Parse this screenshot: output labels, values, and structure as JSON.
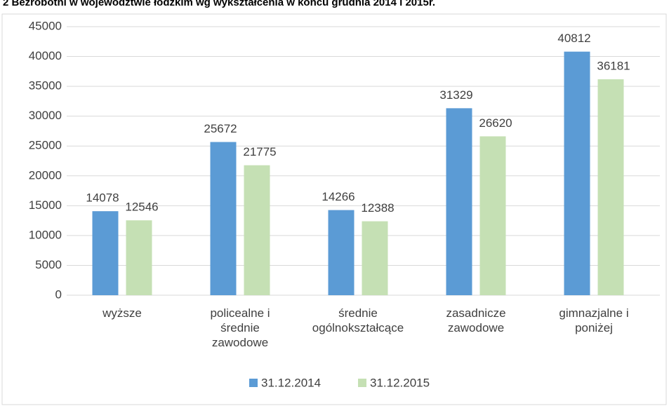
{
  "chart_data": {
    "type": "bar",
    "title": "2 Bezrobotni w województwie łódzkim wg wykształcenia w końcu grudnia 2014 i 2015r.",
    "categories": [
      "wyższe",
      "policealne i\nśrednie\nzawodowe",
      "średnie\nogólnokształcące",
      "zasadnicze\nzawodowe",
      "gimnazjalne i\nponiżej"
    ],
    "series": [
      {
        "name": "31.12.2014",
        "color": "#5b9bd5",
        "values": [
          14078,
          25672,
          14266,
          31329,
          40812
        ]
      },
      {
        "name": "31.12.2015",
        "color": "#c5e0b4",
        "values": [
          12546,
          21775,
          12388,
          26620,
          36181
        ]
      }
    ],
    "ylim": [
      0,
      45000
    ],
    "yticks": [
      0,
      5000,
      10000,
      15000,
      20000,
      25000,
      30000,
      35000,
      40000,
      45000
    ],
    "grid": true,
    "legend": "bottom"
  }
}
